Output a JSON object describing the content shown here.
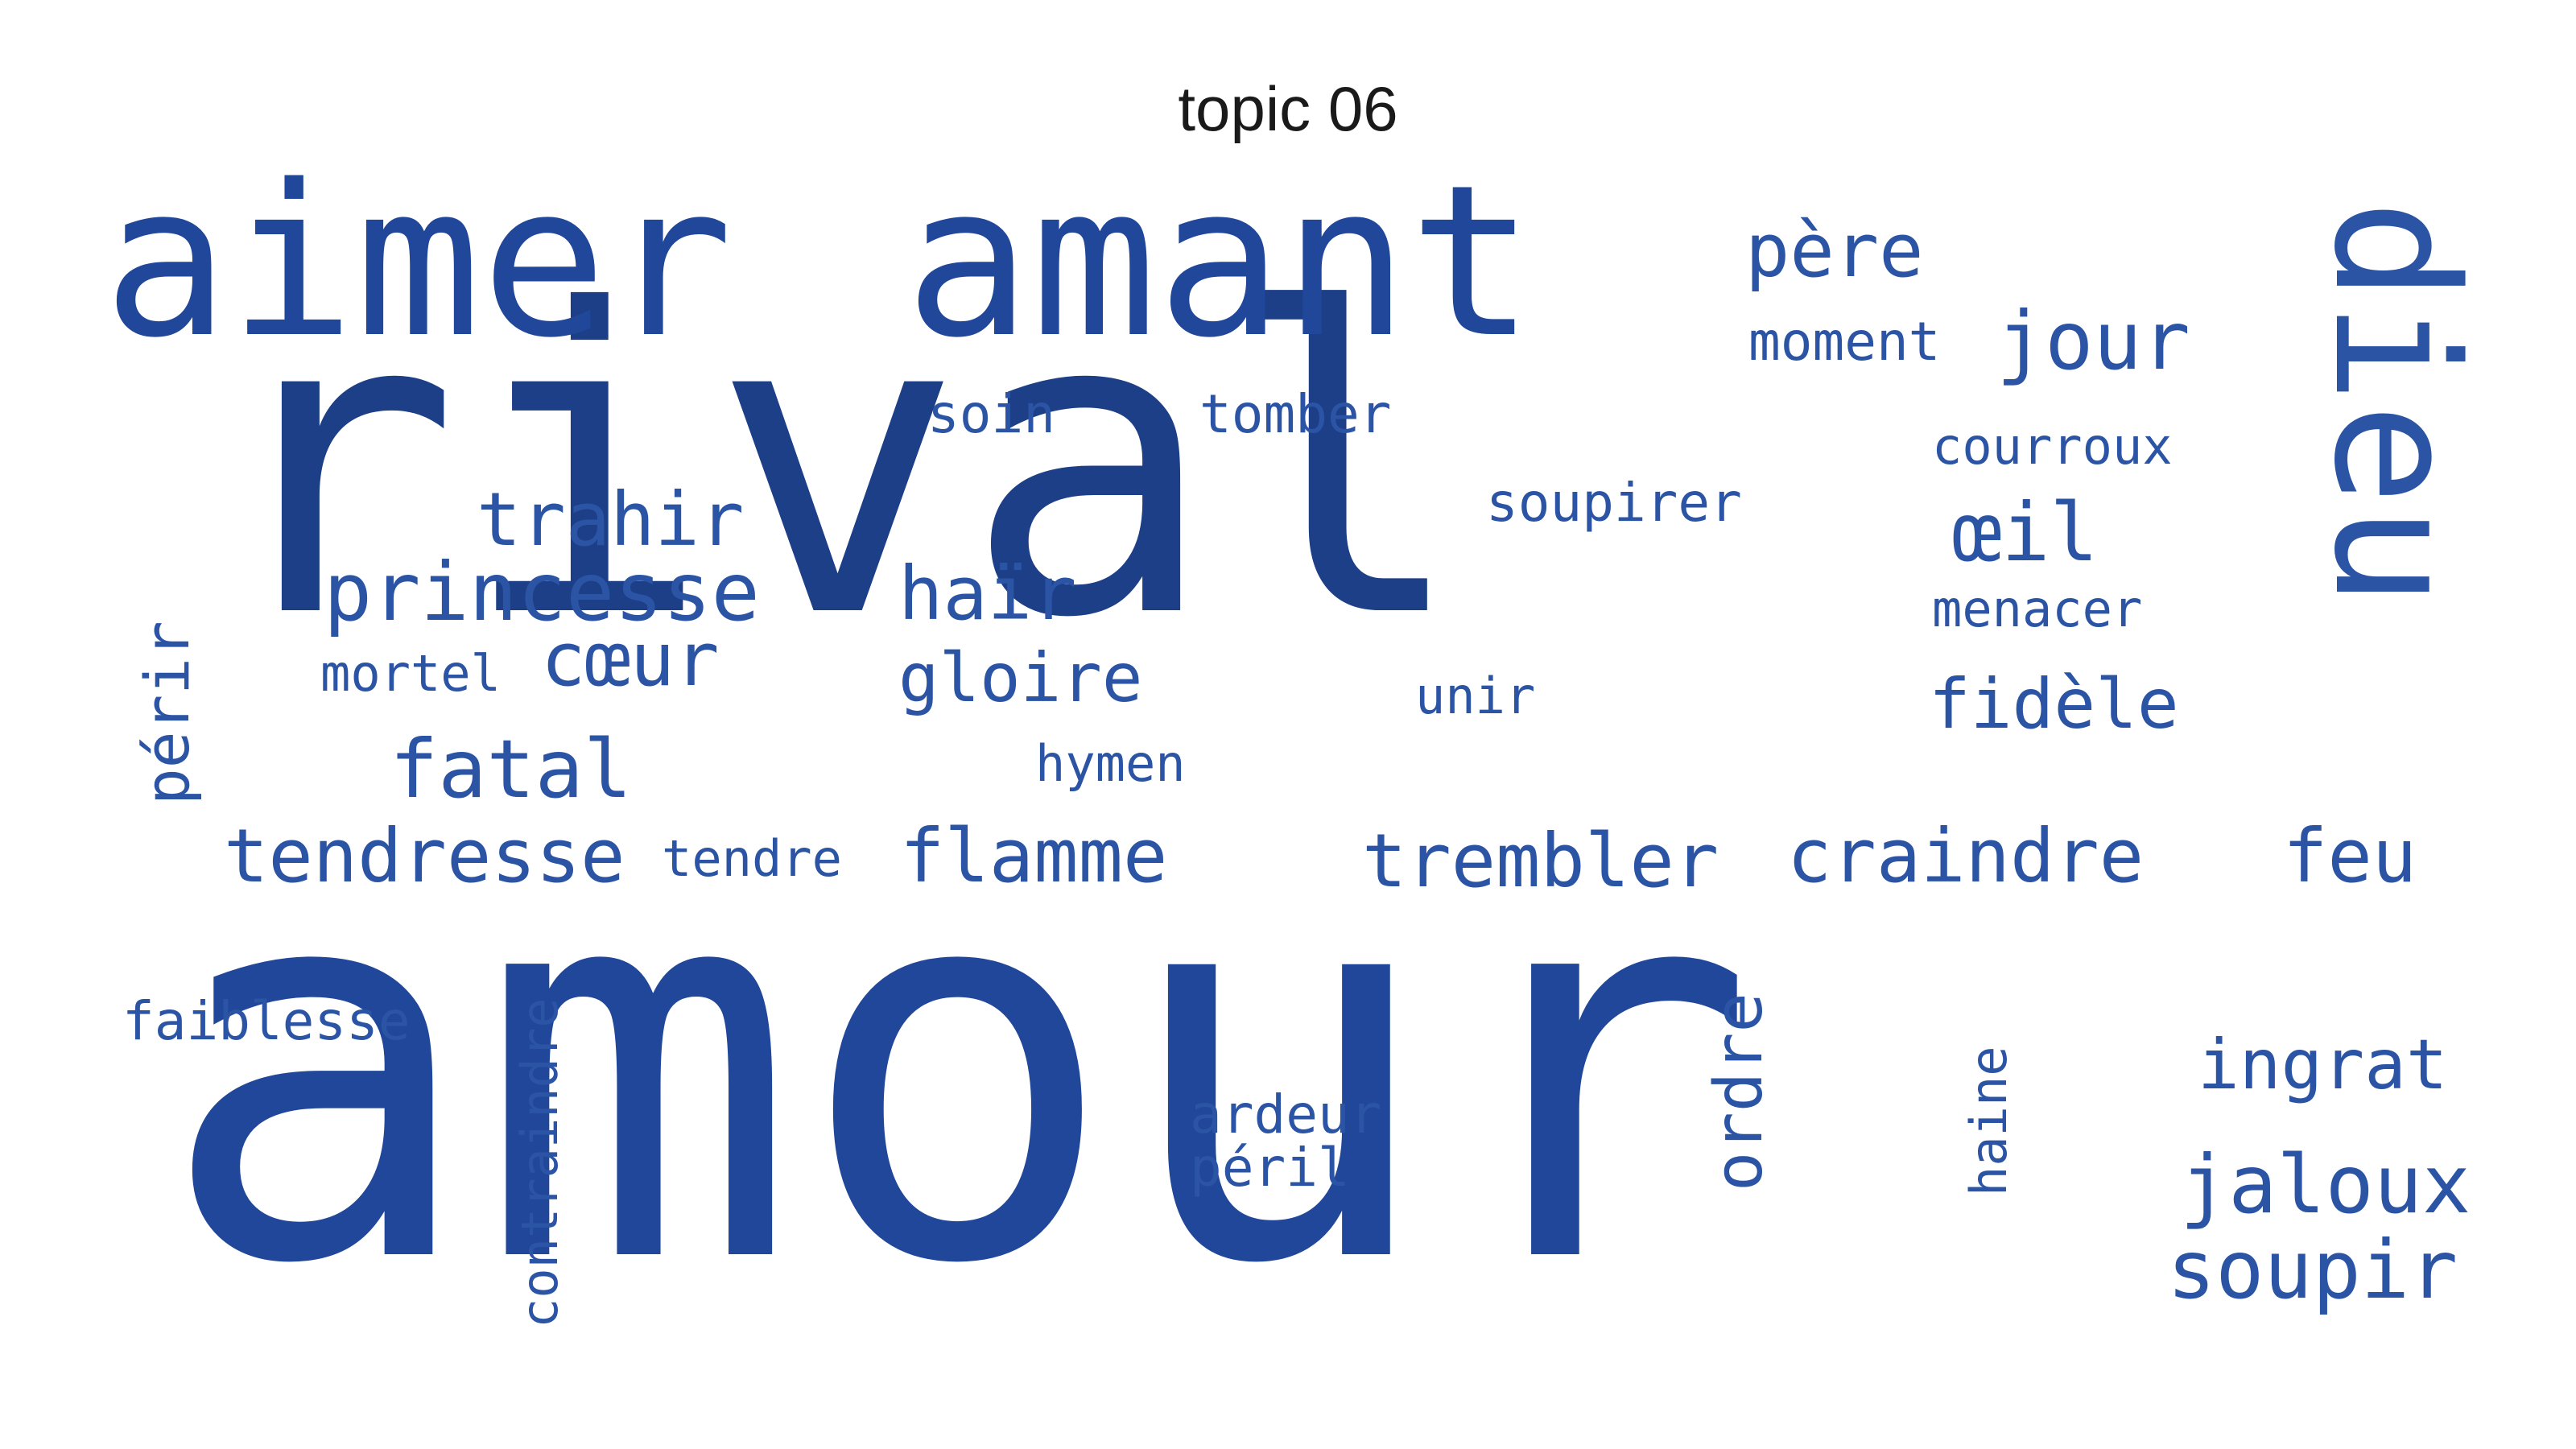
{
  "title": "topic 06",
  "colors": {
    "dark": "#1d3f87",
    "mid": "#21479a",
    "light": "#2b54a5",
    "background": "#ffffff"
  },
  "words": [
    {
      "text": "amour",
      "tone": "mid"
    },
    {
      "text": "rival",
      "tone": "dark"
    },
    {
      "text": "aimer",
      "tone": "mid"
    },
    {
      "text": "amant",
      "tone": "mid"
    },
    {
      "text": "dieu",
      "tone": "light"
    },
    {
      "text": "père",
      "tone": "light"
    },
    {
      "text": "moment",
      "tone": "light"
    },
    {
      "text": "jour",
      "tone": "light"
    },
    {
      "text": "soin",
      "tone": "light"
    },
    {
      "text": "tomber",
      "tone": "light"
    },
    {
      "text": "courroux",
      "tone": "light"
    },
    {
      "text": "soupirer",
      "tone": "light"
    },
    {
      "text": "trahir",
      "tone": "light"
    },
    {
      "text": "œil",
      "tone": "light"
    },
    {
      "text": "princesse",
      "tone": "light"
    },
    {
      "text": "haïr",
      "tone": "light"
    },
    {
      "text": "menacer",
      "tone": "light"
    },
    {
      "text": "cœur",
      "tone": "light"
    },
    {
      "text": "mortel",
      "tone": "light"
    },
    {
      "text": "gloire",
      "tone": "light"
    },
    {
      "text": "unir",
      "tone": "light"
    },
    {
      "text": "fidèle",
      "tone": "light"
    },
    {
      "text": "périr",
      "tone": "light"
    },
    {
      "text": "fatal",
      "tone": "light"
    },
    {
      "text": "hymen",
      "tone": "light"
    },
    {
      "text": "tendresse",
      "tone": "light"
    },
    {
      "text": "tendre",
      "tone": "light"
    },
    {
      "text": "flamme",
      "tone": "light"
    },
    {
      "text": "trembler",
      "tone": "light"
    },
    {
      "text": "craindre",
      "tone": "light"
    },
    {
      "text": "feu",
      "tone": "light"
    },
    {
      "text": "faiblesse",
      "tone": "light"
    },
    {
      "text": "contraindre",
      "tone": "light"
    },
    {
      "text": "ordre",
      "tone": "light"
    },
    {
      "text": "ingrat",
      "tone": "light"
    },
    {
      "text": "haine",
      "tone": "light"
    },
    {
      "text": "ardeur",
      "tone": "light"
    },
    {
      "text": "jaloux",
      "tone": "light"
    },
    {
      "text": "péril",
      "tone": "light"
    },
    {
      "text": "soupir",
      "tone": "light"
    }
  ]
}
